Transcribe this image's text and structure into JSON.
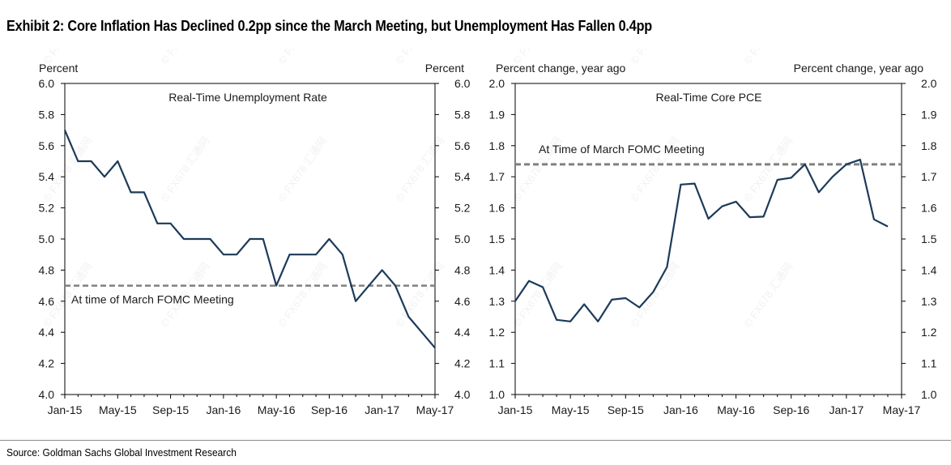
{
  "title": "Exhibit 2: Core Inflation Has Declined 0.2pp since the March Meeting, but Unemployment Has Fallen 0.4pp",
  "source": "Source: Goldman Sachs Global Investment Research",
  "colors": {
    "series": "#1c3a5a",
    "reference": "#808080",
    "frame": "#000000"
  },
  "watermark": "© FX678 汇通网",
  "chart_data": [
    {
      "type": "line",
      "title": "Real-Time Unemployment Rate",
      "ylabel_left": "Percent",
      "ylabel_right": "Percent",
      "ylim": [
        4.0,
        6.0
      ],
      "yticks": [
        "4.0",
        "4.2",
        "4.4",
        "4.6",
        "4.8",
        "5.0",
        "5.2",
        "5.4",
        "5.6",
        "5.8",
        "6.0"
      ],
      "xticks": [
        "Jan-15",
        "May-15",
        "Sep-15",
        "Jan-16",
        "May-16",
        "Sep-16",
        "Jan-17",
        "May-17"
      ],
      "x_start": "2015-01",
      "series": [
        {
          "values": [
            5.7,
            5.5,
            5.5,
            5.4,
            5.5,
            5.3,
            5.3,
            5.1,
            5.1,
            5.0,
            5.0,
            5.0,
            4.9,
            4.9,
            5.0,
            5.0,
            4.7,
            4.9,
            4.9,
            4.9,
            5.0,
            4.9,
            4.6,
            4.7,
            4.8,
            4.7,
            4.5,
            4.4,
            4.3
          ]
        }
      ],
      "reference_line": {
        "label": "At time of March FOMC Meeting",
        "value": 4.7
      },
      "grid": false
    },
    {
      "type": "line",
      "title": "Real-Time Core PCE",
      "ylabel_left": "Percent change, year ago",
      "ylabel_right": "Percent change, year ago",
      "ylim": [
        1.0,
        2.0
      ],
      "yticks": [
        "1.0",
        "1.1",
        "1.2",
        "1.3",
        "1.4",
        "1.5",
        "1.6",
        "1.7",
        "1.8",
        "1.9",
        "2.0"
      ],
      "xticks": [
        "Jan-15",
        "May-15",
        "Sep-15",
        "Jan-16",
        "May-16",
        "Sep-16",
        "Jan-17",
        "May-17"
      ],
      "x_start": "2015-01",
      "series": [
        {
          "values": [
            1.3,
            1.365,
            1.345,
            1.24,
            1.235,
            1.29,
            1.235,
            1.305,
            1.31,
            1.28,
            1.33,
            1.41,
            1.675,
            1.678,
            1.565,
            1.605,
            1.62,
            1.57,
            1.572,
            1.69,
            1.697,
            1.74,
            1.65,
            1.7,
            1.74,
            1.755,
            1.563,
            1.54
          ]
        }
      ],
      "reference_line": {
        "label": "At Time of March FOMC Meeting",
        "value": 1.74
      },
      "grid": false
    }
  ]
}
